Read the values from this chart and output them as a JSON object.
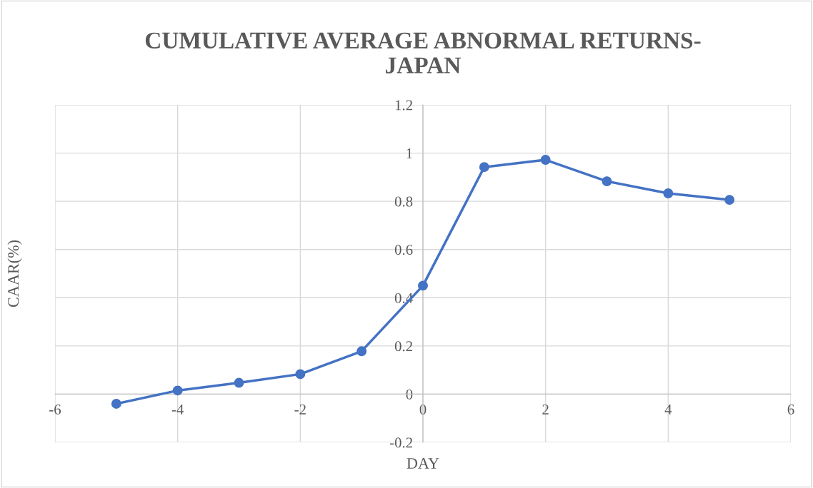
{
  "chart_data": {
    "type": "line",
    "title": "CUMULATIVE AVERAGE ABNORMAL RETURNS-\nJAPAN",
    "xlabel": "DAY",
    "ylabel": "CAAR(%)",
    "x": [
      -5,
      -4,
      -3,
      -2,
      -1,
      0,
      1,
      2,
      3,
      4,
      5
    ],
    "series": [
      {
        "color": "#4472c4",
        "values": [
          -0.04,
          0.015,
          0.047,
          0.083,
          0.178,
          0.45,
          0.942,
          0.972,
          0.883,
          0.833,
          0.806
        ]
      }
    ],
    "xlim": [
      -6,
      6
    ],
    "xticks": [
      -6,
      -4,
      -2,
      0,
      2,
      4,
      6
    ],
    "ylim": [
      -0.2,
      1.2
    ],
    "yticks": [
      -0.2,
      0,
      0.2,
      0.4,
      0.6,
      0.8,
      1,
      1.2
    ],
    "grid": true,
    "marker": "circle",
    "line_style": "solid"
  }
}
